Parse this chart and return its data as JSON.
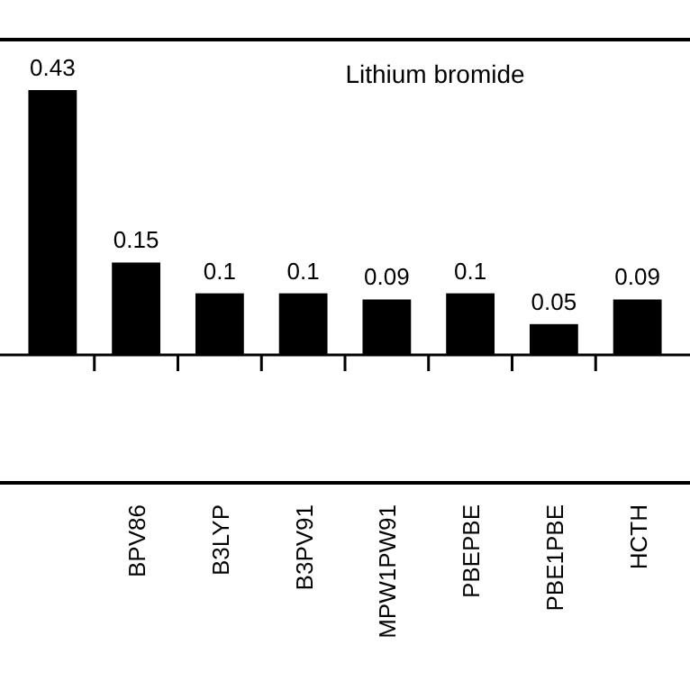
{
  "chart_data": {
    "type": "bar",
    "title": "Lithium bromide",
    "categories": [
      null,
      "BPV86",
      "B3LYP",
      "B3PV91",
      "MPW1PW91",
      "PBEPBE",
      "PBE1PBE",
      "HCTH"
    ],
    "values": [
      0.43,
      0.15,
      0.1,
      0.1,
      0.09,
      0.1,
      0.05,
      0.09
    ],
    "color": "#000000",
    "data_labels": true
  }
}
